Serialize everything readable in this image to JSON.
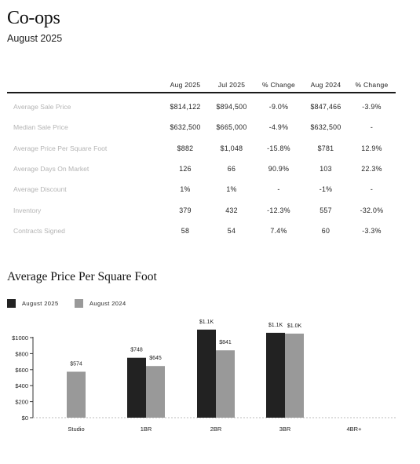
{
  "header": {
    "title": "Co-ops",
    "subtitle": "August 2025"
  },
  "table": {
    "columns": [
      "",
      "Aug 2025",
      "Jul 2025",
      "% Change",
      "Aug 2024",
      "% Change"
    ],
    "rows": [
      {
        "label": "Average Sale Price",
        "values": [
          "$814,122",
          "$894,500",
          "-9.0%",
          "$847,466",
          "-3.9%"
        ]
      },
      {
        "label": "Median Sale Price",
        "values": [
          "$632,500",
          "$665,000",
          "-4.9%",
          "$632,500",
          "-"
        ]
      },
      {
        "label": "Average Price Per Square Foot",
        "values": [
          "$882",
          "$1,048",
          "-15.8%",
          "$781",
          "12.9%"
        ]
      },
      {
        "label": "Average Days On Market",
        "values": [
          "126",
          "66",
          "90.9%",
          "103",
          "22.3%"
        ]
      },
      {
        "label": "Average Discount",
        "values": [
          "1%",
          "1%",
          "-",
          "-1%",
          "-"
        ]
      },
      {
        "label": "Inventory",
        "values": [
          "379",
          "432",
          "-12.3%",
          "557",
          "-32.0%"
        ]
      },
      {
        "label": "Contracts Signed",
        "values": [
          "58",
          "54",
          "7.4%",
          "60",
          "-3.3%"
        ]
      }
    ]
  },
  "chart_data": {
    "type": "bar",
    "title": "Average Price Per Square Foot",
    "categories": [
      "Studio",
      "1BR",
      "2BR",
      "3BR",
      "4BR+"
    ],
    "series": [
      {
        "name": "August 2025",
        "color": "#222222",
        "values": [
          null,
          748,
          1100,
          1060,
          null
        ],
        "labels": [
          "",
          "$748",
          "$1.1K",
          "$1.1K",
          ""
        ]
      },
      {
        "name": "August 2024",
        "color": "#999999",
        "values": [
          574,
          645,
          841,
          1050,
          null
        ],
        "labels": [
          "$574",
          "$645",
          "$841",
          "$1.0K",
          ""
        ]
      }
    ],
    "ylim": [
      0,
      1000
    ],
    "yticks": [
      0,
      200,
      400,
      600,
      800,
      1000
    ],
    "ytick_labels": [
      "$0",
      "$200",
      "$400",
      "$600",
      "$800",
      "$1000"
    ],
    "legend": "top-left",
    "grid": false
  }
}
